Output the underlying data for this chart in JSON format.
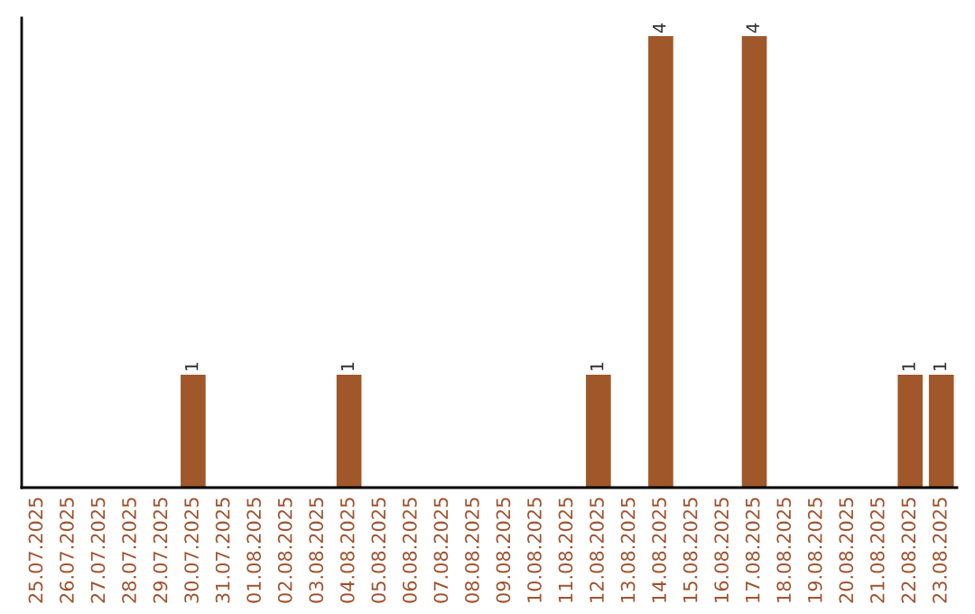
{
  "chart_data": {
    "type": "bar",
    "categories": [
      "25.07.2025",
      "26.07.2025",
      "27.07.2025",
      "28.07.2025",
      "29.07.2025",
      "30.07.2025",
      "31.07.2025",
      "01.08.2025",
      "02.08.2025",
      "03.08.2025",
      "04.08.2025",
      "05.08.2025",
      "06.08.2025",
      "07.08.2025",
      "08.08.2025",
      "09.08.2025",
      "10.08.2025",
      "11.08.2025",
      "12.08.2025",
      "13.08.2025",
      "14.08.2025",
      "15.08.2025",
      "16.08.2025",
      "17.08.2025",
      "18.08.2025",
      "19.08.2025",
      "20.08.2025",
      "21.08.2025",
      "22.08.2025",
      "23.08.2025"
    ],
    "values": [
      0,
      0,
      0,
      0,
      0,
      1,
      0,
      0,
      0,
      0,
      1,
      0,
      0,
      0,
      0,
      0,
      0,
      0,
      1,
      0,
      4,
      0,
      0,
      4,
      0,
      0,
      0,
      0,
      1,
      1
    ],
    "value_labels": [
      null,
      null,
      null,
      null,
      null,
      "1",
      null,
      null,
      null,
      null,
      "1",
      null,
      null,
      null,
      null,
      null,
      null,
      null,
      "1",
      null,
      "4",
      null,
      null,
      "4",
      null,
      null,
      null,
      null,
      "1",
      "1"
    ],
    "color": "#a0582a",
    "tick_labels": "x",
    "grid": false,
    "legend": false
  }
}
